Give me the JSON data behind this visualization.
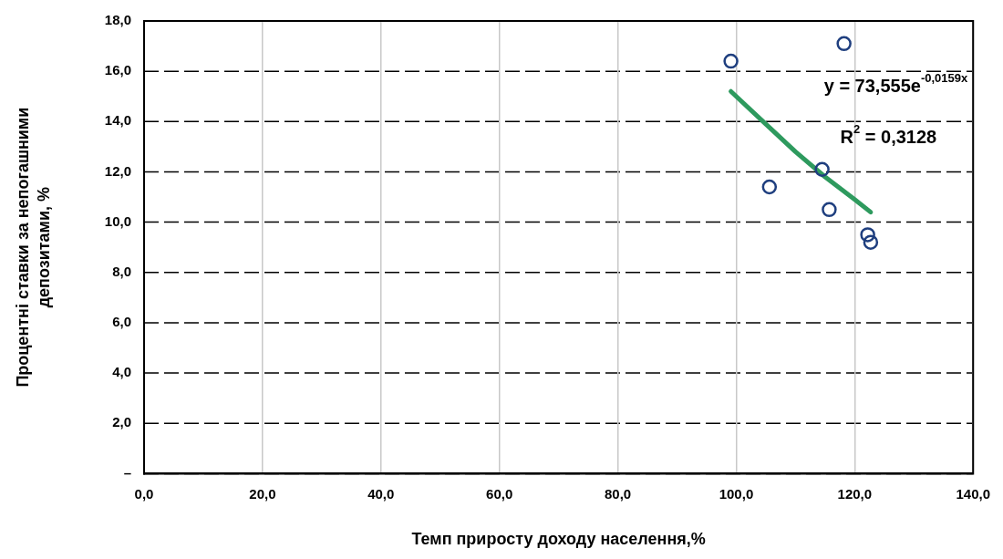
{
  "chart_data": {
    "type": "scatter",
    "xlabel": "Темп приросту доходу населення,%",
    "ylabel": "Процентні ставки за непогашними депозитами, %",
    "xlim": [
      0,
      140
    ],
    "xticks": [
      {
        "value": 0,
        "label": "0,0"
      },
      {
        "value": 20,
        "label": "20,0"
      },
      {
        "value": 40,
        "label": "40,0"
      },
      {
        "value": 60,
        "label": "60,0"
      },
      {
        "value": 80,
        "label": "80,0"
      },
      {
        "value": 100,
        "label": "100,0"
      },
      {
        "value": 120,
        "label": "120,0"
      },
      {
        "value": 140,
        "label": "140,0"
      }
    ],
    "ylim": [
      0,
      18
    ],
    "yticks": [
      {
        "value": 0,
        "label": "–"
      },
      {
        "value": 2,
        "label": "2,0"
      },
      {
        "value": 4,
        "label": "4,0"
      },
      {
        "value": 6,
        "label": "6,0"
      },
      {
        "value": 8,
        "label": "8,0"
      },
      {
        "value": 10,
        "label": "10,0"
      },
      {
        "value": 12,
        "label": "12,0"
      },
      {
        "value": 14,
        "label": "14,0"
      },
      {
        "value": 16,
        "label": "16,0"
      },
      {
        "value": 18,
        "label": "18,0"
      }
    ],
    "grid": true,
    "series": [
      {
        "marker": "circle",
        "color": "#1f3f7f",
        "x": [
          99.1,
          118.2,
          105.6,
          114.5,
          115.7,
          122.2,
          122.7
        ],
        "values": [
          16.4,
          17.1,
          11.4,
          12.1,
          10.5,
          9.5,
          9.2
        ]
      },
      {
        "type": "line",
        "color": "#2e9a5e",
        "x": [
          99.1,
          105,
          110,
          115,
          120,
          122.7
        ],
        "values": [
          15.2,
          13.9,
          12.8,
          11.8,
          10.9,
          10.4
        ]
      }
    ],
    "annotations": [
      "y = 73,555e$^{-0,0159x}$",
      "R$^{2}$ = 0,3128"
    ]
  }
}
